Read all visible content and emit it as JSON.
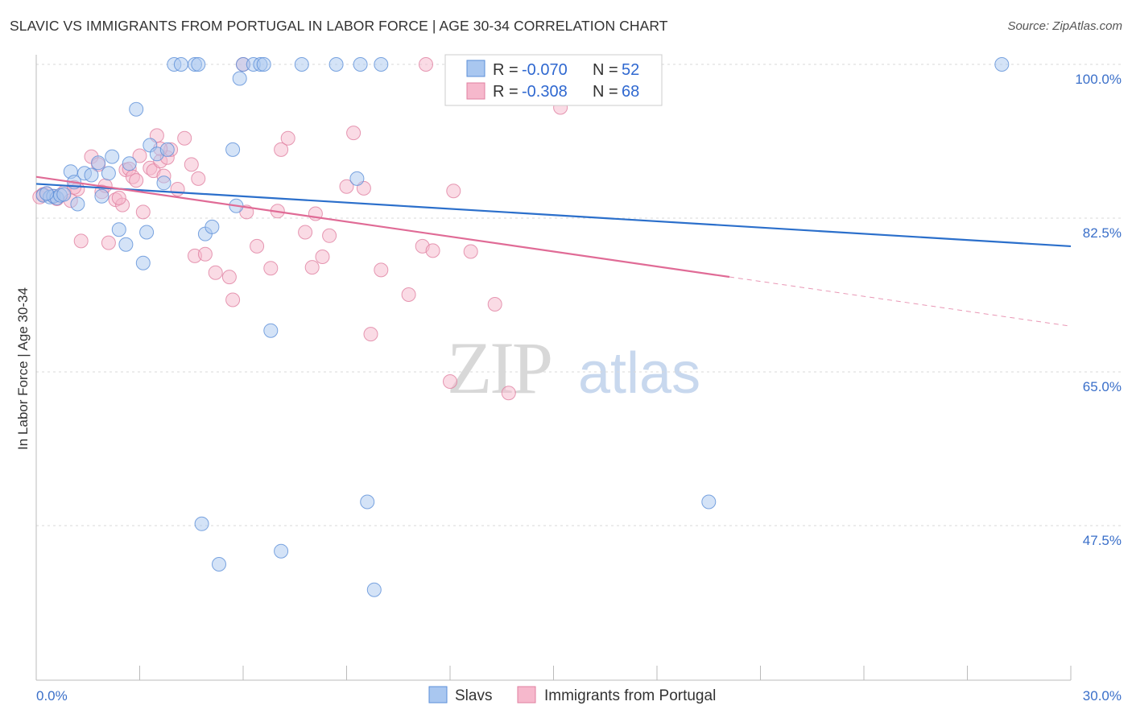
{
  "title": "SLAVIC VS IMMIGRANTS FROM PORTUGAL IN LABOR FORCE | AGE 30-34 CORRELATION CHART",
  "source": "Source: ZipAtlas.com",
  "watermark": {
    "zip": "ZIP",
    "atlas": "atlas"
  },
  "colors": {
    "slavs_fill": "#a9c7f0",
    "slavs_stroke": "#5b8fd8",
    "slavs_line": "#2b6fcb",
    "portugal_fill": "#f6b8cc",
    "portugal_stroke": "#e07fa0",
    "portugal_line": "#e06b96",
    "tick_text": "#3a6fc9",
    "grid": "#d9d9d9"
  },
  "legend": {
    "row1": {
      "r_label": "R = ",
      "r_value": "-0.070",
      "n_label": "N = ",
      "n_value": "52"
    },
    "row2": {
      "r_label": "R = ",
      "r_value": "-0.308",
      "n_label": "N = ",
      "n_value": "68"
    }
  },
  "chart_data": {
    "type": "scatter",
    "title": "SLAVIC VS IMMIGRANTS FROM PORTUGAL IN LABOR FORCE | AGE 30-34 CORRELATION CHART",
    "xlabel": "",
    "ylabel": "In Labor Force | Age 30-34",
    "xlim": [
      0,
      30
    ],
    "ylim": [
      32.5,
      101.5
    ],
    "x_tick_labels": [
      "0.0%",
      "30.0%"
    ],
    "y_ticks": [
      47.5,
      65.0,
      82.5,
      100.0
    ],
    "y_tick_labels": [
      "47.5%",
      "65.0%",
      "82.5%",
      "100.0%"
    ],
    "grid": true,
    "legend_position": "top-center",
    "series": [
      {
        "name": "Slavs",
        "r": -0.07,
        "n": 52,
        "trend": {
          "x0": 0,
          "y0": 86.4,
          "x1": 30,
          "y1": 79.3,
          "dashed_from": null
        },
        "points": [
          [
            0.2,
            85.1
          ],
          [
            0.4,
            84.9
          ],
          [
            0.5,
            85.0
          ],
          [
            0.6,
            84.8
          ],
          [
            0.7,
            85.1
          ],
          [
            1.0,
            87.8
          ],
          [
            1.1,
            86.6
          ],
          [
            1.2,
            84.1
          ],
          [
            1.4,
            87.6
          ],
          [
            1.6,
            87.4
          ],
          [
            1.8,
            88.8
          ],
          [
            1.9,
            85.0
          ],
          [
            2.1,
            87.6
          ],
          [
            2.2,
            89.5
          ],
          [
            2.4,
            81.2
          ],
          [
            2.6,
            79.5
          ],
          [
            2.7,
            88.7
          ],
          [
            2.9,
            94.9
          ],
          [
            3.1,
            77.4
          ],
          [
            3.2,
            80.9
          ],
          [
            3.3,
            90.8
          ],
          [
            3.5,
            89.8
          ],
          [
            3.7,
            86.5
          ],
          [
            3.8,
            90.3
          ],
          [
            4.0,
            100.0
          ],
          [
            4.2,
            100.0
          ],
          [
            4.6,
            100.0
          ],
          [
            4.7,
            100.0
          ],
          [
            4.8,
            47.7
          ],
          [
            4.9,
            80.7
          ],
          [
            5.1,
            81.5
          ],
          [
            5.3,
            43.1
          ],
          [
            5.7,
            90.3
          ],
          [
            5.8,
            83.9
          ],
          [
            5.9,
            98.4
          ],
          [
            6.0,
            100.0
          ],
          [
            6.3,
            100.0
          ],
          [
            6.5,
            100.0
          ],
          [
            6.6,
            100.0
          ],
          [
            6.8,
            69.7
          ],
          [
            7.1,
            44.6
          ],
          [
            7.7,
            100.0
          ],
          [
            8.7,
            100.0
          ],
          [
            9.3,
            87.0
          ],
          [
            9.4,
            100.0
          ],
          [
            9.6,
            50.2
          ],
          [
            9.8,
            40.2
          ],
          [
            10.0,
            100.0
          ],
          [
            19.5,
            50.2
          ],
          [
            28.0,
            100.0
          ],
          [
            0.3,
            85.3
          ],
          [
            0.8,
            85.2
          ]
        ]
      },
      {
        "name": "Immigrants from Portugal",
        "r": -0.308,
        "n": 68,
        "trend": {
          "x0": 0,
          "y0": 87.2,
          "x1": 30,
          "y1": 70.2,
          "dashed_from": 20.1
        },
        "points": [
          [
            0.1,
            84.9
          ],
          [
            0.3,
            85.3
          ],
          [
            0.5,
            85.0
          ],
          [
            0.8,
            85.4
          ],
          [
            1.0,
            84.5
          ],
          [
            1.2,
            85.8
          ],
          [
            1.3,
            79.9
          ],
          [
            1.6,
            89.5
          ],
          [
            1.8,
            88.6
          ],
          [
            1.9,
            85.5
          ],
          [
            2.0,
            86.2
          ],
          [
            2.1,
            79.7
          ],
          [
            2.3,
            84.6
          ],
          [
            2.5,
            84.0
          ],
          [
            2.6,
            88.0
          ],
          [
            2.7,
            88.1
          ],
          [
            2.8,
            87.2
          ],
          [
            2.9,
            86.8
          ],
          [
            3.0,
            89.6
          ],
          [
            3.1,
            83.2
          ],
          [
            3.3,
            88.2
          ],
          [
            3.4,
            87.9
          ],
          [
            3.5,
            91.9
          ],
          [
            3.6,
            89.0
          ],
          [
            3.7,
            87.3
          ],
          [
            3.8,
            89.4
          ],
          [
            3.9,
            90.3
          ],
          [
            4.1,
            85.8
          ],
          [
            4.3,
            91.6
          ],
          [
            4.5,
            88.6
          ],
          [
            4.6,
            78.2
          ],
          [
            4.7,
            87.0
          ],
          [
            4.9,
            78.4
          ],
          [
            5.2,
            76.3
          ],
          [
            5.6,
            75.8
          ],
          [
            5.7,
            73.2
          ],
          [
            6.0,
            100.0
          ],
          [
            6.1,
            83.2
          ],
          [
            6.4,
            79.3
          ],
          [
            6.8,
            76.8
          ],
          [
            7.0,
            83.3
          ],
          [
            7.1,
            90.3
          ],
          [
            7.3,
            91.6
          ],
          [
            7.8,
            80.9
          ],
          [
            8.0,
            76.9
          ],
          [
            8.1,
            83.0
          ],
          [
            8.3,
            78.1
          ],
          [
            8.5,
            80.5
          ],
          [
            9.0,
            86.1
          ],
          [
            9.2,
            92.2
          ],
          [
            9.5,
            85.9
          ],
          [
            9.7,
            69.3
          ],
          [
            10.0,
            76.6
          ],
          [
            10.8,
            73.8
          ],
          [
            11.2,
            79.3
          ],
          [
            11.3,
            100.0
          ],
          [
            11.5,
            78.8
          ],
          [
            12.0,
            63.9
          ],
          [
            12.1,
            85.6
          ],
          [
            12.6,
            78.7
          ],
          [
            13.3,
            72.7
          ],
          [
            13.7,
            62.6
          ],
          [
            15.2,
            95.1
          ],
          [
            0.2,
            85.2
          ],
          [
            0.6,
            84.7
          ],
          [
            1.1,
            86.0
          ],
          [
            2.4,
            84.8
          ],
          [
            3.6,
            90.4
          ]
        ]
      }
    ]
  },
  "bottom_legend": [
    {
      "label": "Slavs"
    },
    {
      "label": "Immigrants from Portugal"
    }
  ]
}
